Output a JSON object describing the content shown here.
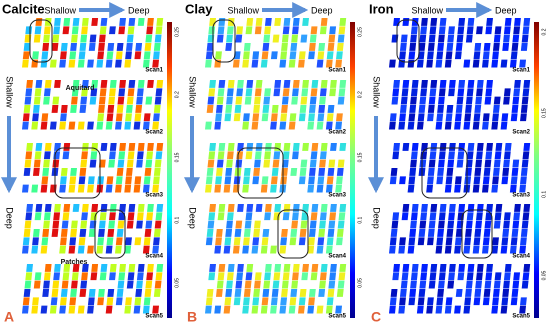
{
  "panels": [
    {
      "title": "Calcite",
      "top_start": "Shallow",
      "top_end": "Deep",
      "side_start": "Shallow",
      "side_end": "Deep",
      "scans": [
        "Scan1",
        "Scan2",
        "Scan3",
        "Scan4",
        "Scan5"
      ],
      "colorbar_ticks": [
        0.25,
        0.2,
        0.15,
        0.1,
        0.05
      ],
      "letter": "A",
      "annotations": [
        "Aquitard",
        "Patches"
      ]
    },
    {
      "title": "Clay",
      "top_start": "Shallow",
      "top_end": "Deep",
      "side_start": "Shallow",
      "side_end": "Deep",
      "scans": [
        "Scan1",
        "Scan2",
        "Scan3",
        "Scan4",
        "Scan5"
      ],
      "colorbar_ticks": [
        0.25,
        0.2,
        0.15,
        0.1,
        0.05
      ],
      "letter": "B"
    },
    {
      "title": "Iron",
      "top_start": "Shallow",
      "top_end": "Deep",
      "side_start": "Shallow",
      "side_end": "Deep",
      "scans": [
        "Scan1",
        "Scan2",
        "Scan3",
        "Scan4",
        "Scan5"
      ],
      "colorbar_ticks": [
        0.2,
        0.15,
        0.1,
        0.05
      ],
      "letter": "C"
    }
  ]
}
